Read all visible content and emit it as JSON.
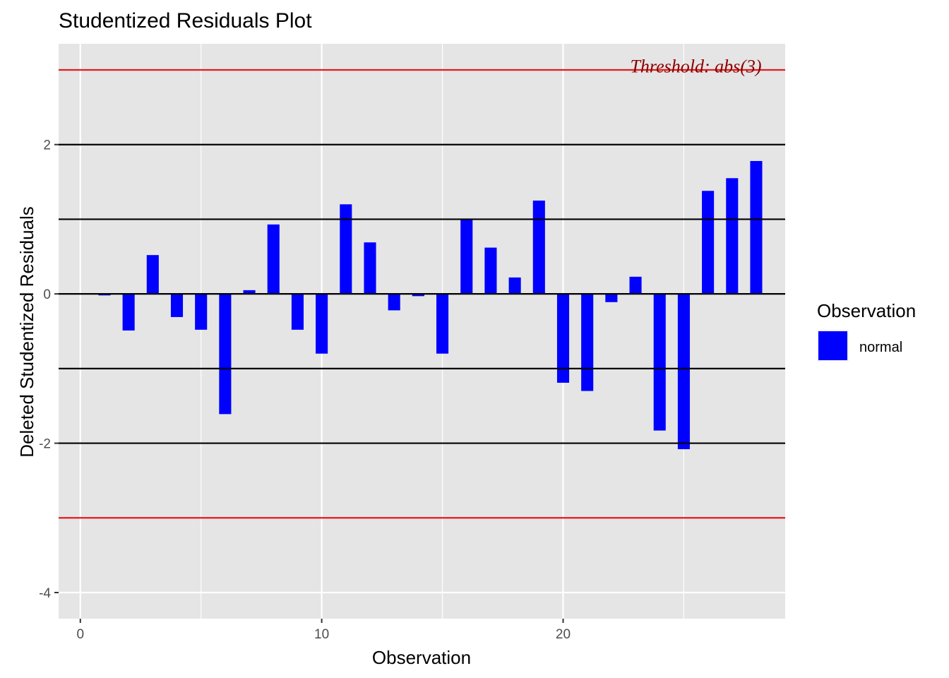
{
  "chart_data": {
    "type": "bar",
    "title": "Studentized Residuals Plot",
    "xlabel": "Observation",
    "ylabel": "Deleted Studentized Residuals",
    "x": [
      1,
      2,
      3,
      4,
      5,
      6,
      7,
      8,
      9,
      10,
      11,
      12,
      13,
      14,
      15,
      16,
      17,
      18,
      19,
      20,
      21,
      22,
      23,
      24,
      25,
      26,
      27,
      28
    ],
    "values": [
      -0.02,
      -0.49,
      0.52,
      -0.31,
      -0.48,
      -1.61,
      0.05,
      0.93,
      -0.48,
      -0.8,
      1.2,
      0.69,
      -0.22,
      -0.03,
      -0.8,
      1.0,
      0.62,
      0.22,
      1.25,
      -1.19,
      -1.3,
      -0.11,
      0.23,
      -1.83,
      -2.08,
      1.38,
      1.55,
      1.78
    ],
    "xlim": [
      -0.9,
      29.2
    ],
    "ylim": [
      -4.35,
      3.35
    ],
    "xticks": [
      0,
      10,
      20
    ],
    "yticks": [
      -4,
      -2,
      0,
      2
    ],
    "reference_lines": [
      {
        "y": 2,
        "color": "#000000"
      },
      {
        "y": 1,
        "color": "#000000"
      },
      {
        "y": 0,
        "color": "#000000"
      },
      {
        "y": -1,
        "color": "#000000"
      },
      {
        "y": -2,
        "color": "#000000"
      },
      {
        "y": 3,
        "color": "#e41a1c"
      },
      {
        "y": -3,
        "color": "#e41a1c"
      }
    ],
    "annotation": {
      "text": "Threshold: abs(3)",
      "x": 25.5,
      "y": 3.05,
      "color": "#8b0000"
    },
    "legend": {
      "title": "Observation",
      "entries": [
        {
          "label": "normal",
          "color": "#0000ff"
        }
      ],
      "position": "right"
    },
    "grid": true,
    "bar_color": "#0000ff",
    "panel_color": "#e5e5e5"
  }
}
